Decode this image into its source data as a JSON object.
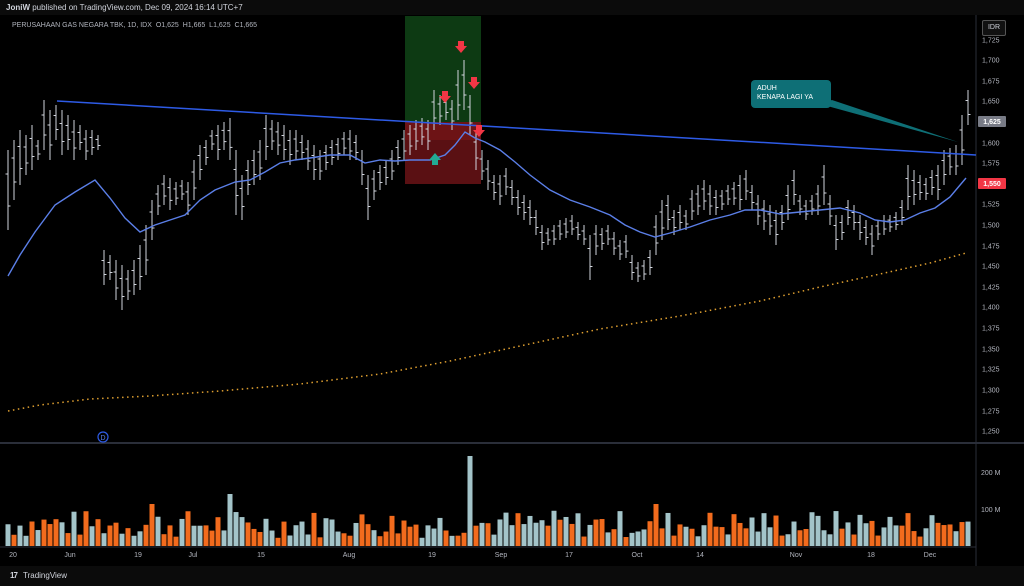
{
  "header": {
    "author": "JoniW",
    "published_text": "published on TradingView.com, Dec 09, 2024 16:14 UTC+7"
  },
  "legend": {
    "symbol": "PERUSAHAAN GAS NEGARA TBK, 1D, IDX",
    "open_label": "O",
    "open": "1,625",
    "high_label": "H",
    "high": "1,665",
    "low_label": "L",
    "low": "1,625",
    "close_label": "C",
    "close": "1,665"
  },
  "currency": "IDR",
  "price_axis": [
    "1,725",
    "1,700",
    "1,675",
    "1,650",
    "1,625",
    "1,600",
    "1,575",
    "1,550",
    "1,525",
    "1,500",
    "1,475",
    "1,450",
    "1,425",
    "1,400",
    "1,375",
    "1,350",
    "1,325",
    "1,300",
    "1,275",
    "1,250"
  ],
  "price_tags": {
    "current": {
      "label": "1,625",
      "color": "#787b86"
    },
    "ma": {
      "label": "1,550",
      "color": "#f23645"
    }
  },
  "volume_axis": [
    "200 M",
    "100 M"
  ],
  "time_axis": [
    "20",
    "Jun",
    "19",
    "Jul",
    "15",
    "Aug",
    "19",
    "Sep",
    "17",
    "Oct",
    "14",
    "Nov",
    "18",
    "Dec"
  ],
  "annotation": {
    "line1": "ADUH",
    "line2": "KENAPA LAGI YA"
  },
  "dividend_marker": "D",
  "footer": {
    "brand": "TradingView",
    "logo": "17"
  },
  "colors": {
    "background": "#000000",
    "bar": "#d1d4dc",
    "ma_line": "#5b7fe8",
    "trend_line": "#2e5be6",
    "long_ma": "#e0a030",
    "vol_up": "#a3c4c9",
    "vol_down": "#f26b1d",
    "zone_green": "#0d3a13",
    "zone_red": "#5a1013",
    "arrow_red": "#f23645",
    "arrow_green": "#22ab94"
  }
}
